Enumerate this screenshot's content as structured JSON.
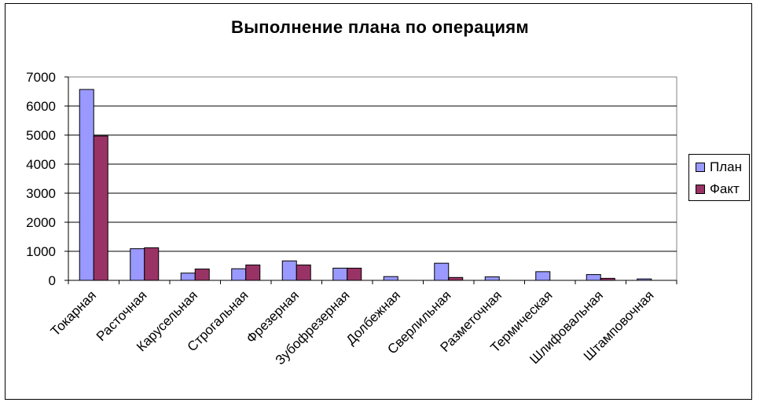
{
  "chart_data": {
    "type": "bar",
    "title": "Выполнение плана по операциям",
    "xlabel": "",
    "ylabel": "",
    "ylim": [
      0,
      7000
    ],
    "yticks": [
      0,
      1000,
      2000,
      3000,
      4000,
      5000,
      6000,
      7000
    ],
    "grid": true,
    "legend_position": "right",
    "categories": [
      "Токарная",
      "Расточная",
      "Карусельная",
      "Строгальная",
      "Фрезерная",
      "Зубофрезерная",
      "Долбежная",
      "Сверлильная",
      "Разметочная",
      "Термическая",
      "Шлифовальная",
      "Штамповочная"
    ],
    "series": [
      {
        "name": "План",
        "color": "#9999ff",
        "values": [
          6570,
          1090,
          250,
          400,
          670,
          420,
          130,
          590,
          120,
          300,
          200,
          50
        ]
      },
      {
        "name": "Факт",
        "color": "#993366",
        "values": [
          4970,
          1120,
          390,
          530,
          530,
          420,
          0,
          100,
          0,
          0,
          70,
          0
        ]
      }
    ]
  }
}
